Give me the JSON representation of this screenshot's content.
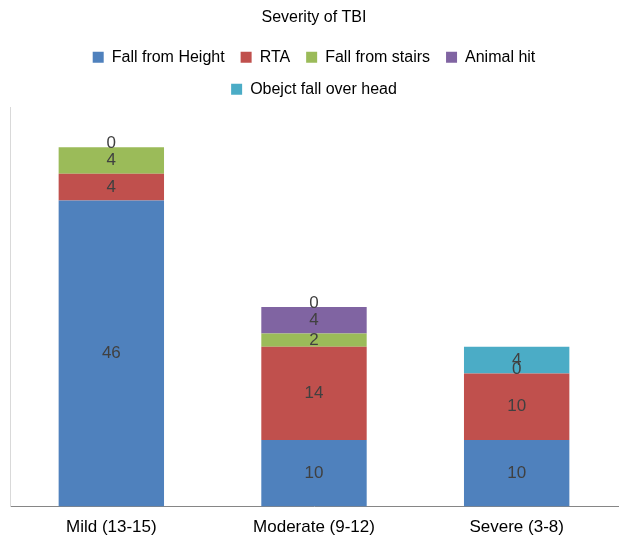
{
  "chart_data": {
    "type": "bar",
    "title": "Severity of TBI",
    "categories": [
      "Mild (13-15)",
      "Moderate (9-12)",
      "Severe (3-8)"
    ],
    "series": [
      {
        "name": "Fall from Height",
        "color": "#4f81bd",
        "values": [
          46,
          10,
          10
        ]
      },
      {
        "name": "RTA",
        "color": "#c0504d",
        "values": [
          4,
          14,
          10
        ]
      },
      {
        "name": "Fall from stairs",
        "color": "#9bbb59",
        "values": [
          4,
          2,
          0
        ]
      },
      {
        "name": "Animal hit",
        "color": "#8064a2",
        "values": [
          0,
          4,
          null
        ]
      },
      {
        "name": "Obejct fall over head",
        "color": "#4bacc6",
        "values": [
          null,
          0,
          4
        ]
      }
    ],
    "ylim": [
      0,
      60
    ],
    "stacked": true,
    "data_labels": true,
    "legend": "top",
    "grid": false,
    "tick_labels": "x"
  }
}
